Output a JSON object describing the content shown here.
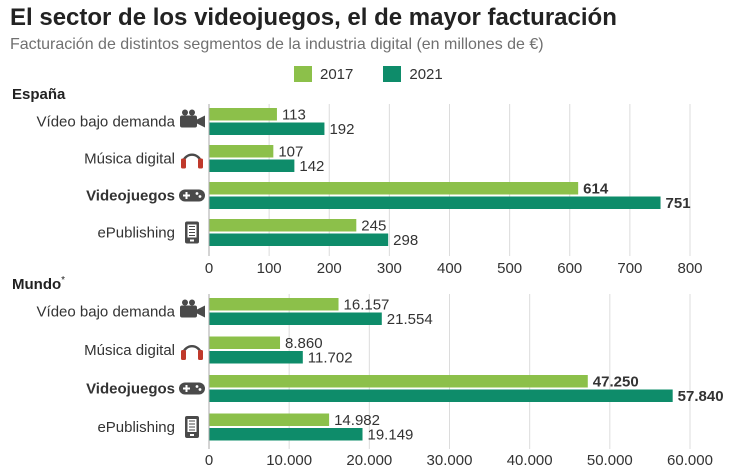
{
  "title": "El sector de los videojuegos, el de mayor facturación",
  "subtitle": "Facturación de distintos segmentos de la industria digital (en millones de €)",
  "colors": {
    "y2017": "#8cc04a",
    "y2021": "#0e8c6a"
  },
  "legend": [
    {
      "label": "2017",
      "color": "#8cc04a"
    },
    {
      "label": "2021",
      "color": "#0e8c6a"
    }
  ],
  "chart_data": [
    {
      "type": "bar",
      "orientation": "horizontal",
      "title": "España",
      "categories": [
        "Vídeo bajo demanda",
        "Música digital",
        "Videojuegos",
        "ePublishing"
      ],
      "icons": [
        "video-camera-icon",
        "headphones-icon",
        "gamepad-icon",
        "ebook-reader-icon"
      ],
      "highlight": [
        false,
        false,
        true,
        false
      ],
      "series": [
        {
          "name": "2017",
          "values": [
            113,
            107,
            614,
            245
          ],
          "labels": [
            "113",
            "107",
            "614",
            "245"
          ]
        },
        {
          "name": "2021",
          "values": [
            192,
            142,
            751,
            298
          ],
          "labels": [
            "192",
            "142",
            "751",
            "298"
          ]
        }
      ],
      "xlim": [
        0,
        800
      ],
      "ticks": [
        0,
        100,
        200,
        300,
        400,
        500,
        600,
        700,
        800
      ],
      "tick_labels": [
        "0",
        "100",
        "200",
        "300",
        "400",
        "500",
        "600",
        "700",
        "800"
      ]
    },
    {
      "type": "bar",
      "orientation": "horizontal",
      "title": "Mundo",
      "title_suffix": "*",
      "categories": [
        "Vídeo bajo demanda",
        "Música digital",
        "Videojuegos",
        "ePublishing"
      ],
      "icons": [
        "video-camera-icon",
        "headphones-icon",
        "gamepad-icon",
        "ebook-reader-icon"
      ],
      "highlight": [
        false,
        false,
        true,
        false
      ],
      "series": [
        {
          "name": "2017",
          "values": [
            16157,
            8860,
            47250,
            14982
          ],
          "labels": [
            "16.157",
            "8.860",
            "47.250",
            "14.982"
          ]
        },
        {
          "name": "2021",
          "values": [
            21554,
            11702,
            57840,
            19149
          ],
          "labels": [
            "21.554",
            "11.702",
            "57.840",
            "19.149"
          ]
        }
      ],
      "xlim": [
        0,
        60000
      ],
      "ticks": [
        0,
        10000,
        20000,
        30000,
        40000,
        50000,
        60000
      ],
      "tick_labels": [
        "0",
        "10.000",
        "20.000",
        "30.000",
        "40.000",
        "50.000",
        "60.000"
      ]
    }
  ]
}
